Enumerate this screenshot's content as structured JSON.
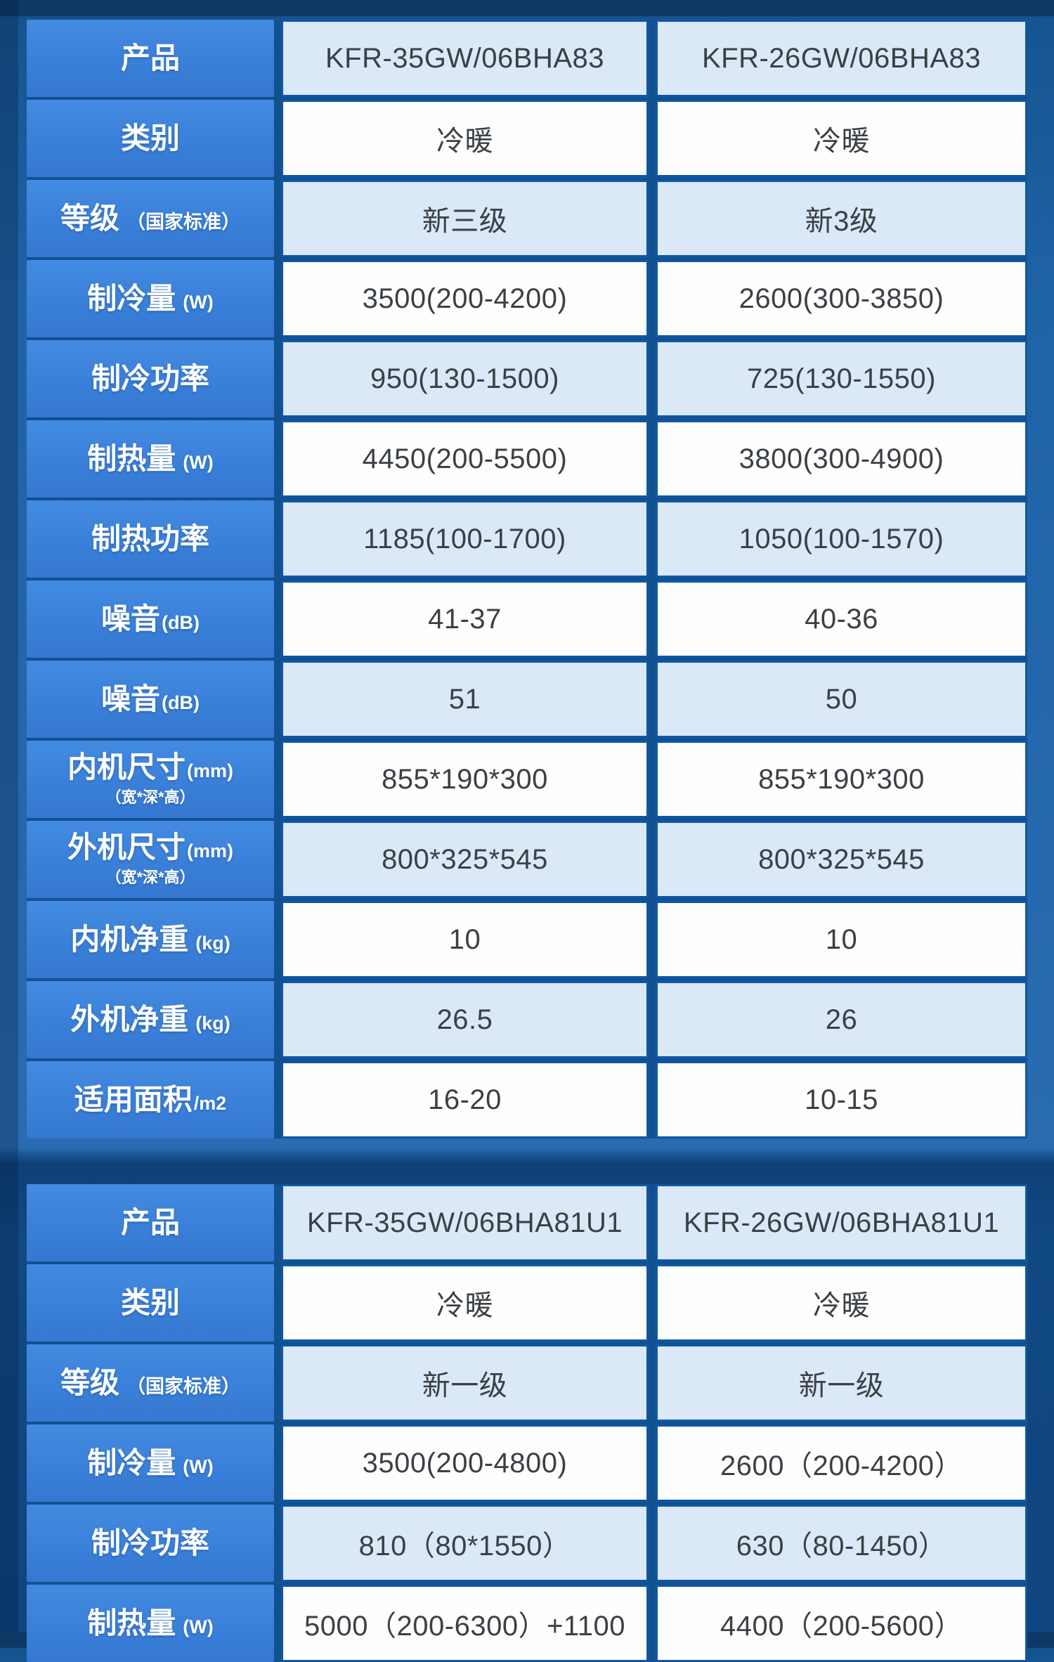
{
  "page": {
    "type": "air-conditioner-specification-comparison",
    "colors": {
      "background_top_strip": "#0e3966",
      "background_main": "#1f63a7",
      "section_divider_band": "#0d4076",
      "label_cell_blue": "#3c84da",
      "grid_line_blue": "#0f57a7",
      "row_light_blue": "#dbe8f8",
      "row_white": "#fefefe",
      "label_text": "#ffffff",
      "value_text": "#3b4045"
    }
  },
  "tables": [
    {
      "name": "table-1",
      "rows": [
        {
          "label": "产品",
          "note": "",
          "note_gap": true,
          "sub": "",
          "v1": "KFR-35GW/06BHA83",
          "v2": "KFR-26GW/06BHA83"
        },
        {
          "label": "类别",
          "note": "",
          "note_gap": true,
          "sub": "",
          "v1": "冷暖",
          "v2": "冷暖"
        },
        {
          "label": "等级",
          "note": "（国家标准）",
          "note_gap": true,
          "sub": "",
          "v1": "新三级",
          "v2": "新3级"
        },
        {
          "label": "制冷量",
          "note": "(W)",
          "note_gap": true,
          "sub": "",
          "v1": "3500(200-4200)",
          "v2": "2600(300-3850)"
        },
        {
          "label": "制冷功率",
          "note": "",
          "note_gap": true,
          "sub": "",
          "v1": "950(130-1500)",
          "v2": "725(130-1550)"
        },
        {
          "label": "制热量",
          "note": "(W)",
          "note_gap": true,
          "sub": "",
          "v1": "4450(200-5500)",
          "v2": "3800(300-4900)"
        },
        {
          "label": "制热功率",
          "note": "",
          "note_gap": true,
          "sub": "",
          "v1": "1185(100-1700)",
          "v2": "1050(100-1570)"
        },
        {
          "label": "噪音",
          "note": "(dB)",
          "note_gap": false,
          "sub": "",
          "v1": "41-37",
          "v2": "40-36"
        },
        {
          "label": "噪音",
          "note": "(dB)",
          "note_gap": false,
          "sub": "",
          "v1": "51",
          "v2": "50"
        },
        {
          "label": "内机尺寸",
          "note": "(mm)",
          "note_gap": false,
          "sub": "（宽*深*高）",
          "v1": "855*190*300",
          "v2": "855*190*300"
        },
        {
          "label": "外机尺寸",
          "note": "(mm)",
          "note_gap": false,
          "sub": "（宽*深*高）",
          "v1": "800*325*545",
          "v2": "800*325*545"
        },
        {
          "label": "内机净重",
          "note": "(kg)",
          "note_gap": true,
          "sub": "",
          "v1": "10",
          "v2": "10"
        },
        {
          "label": "外机净重",
          "note": "(kg)",
          "note_gap": true,
          "sub": "",
          "v1": "26.5",
          "v2": "26"
        },
        {
          "label": "适用面积",
          "note": "/m2",
          "note_gap": false,
          "sub": "",
          "v1": "16-20",
          "v2": "10-15"
        }
      ]
    },
    {
      "name": "table-2",
      "rows": [
        {
          "label": "产品",
          "note": "",
          "note_gap": true,
          "sub": "",
          "v1": "KFR-35GW/06BHA81U1",
          "v2": "KFR-26GW/06BHA81U1"
        },
        {
          "label": "类别",
          "note": "",
          "note_gap": true,
          "sub": "",
          "v1": "冷暖",
          "v2": "冷暖"
        },
        {
          "label": "等级",
          "note": "（国家标准）",
          "note_gap": true,
          "sub": "",
          "v1": "新一级",
          "v2": "新一级"
        },
        {
          "label": "制冷量",
          "note": "(W)",
          "note_gap": true,
          "sub": "",
          "v1": "3500(200-4800)",
          "v2": "2600（200-4200）"
        },
        {
          "label": "制冷功率",
          "note": "",
          "note_gap": true,
          "sub": "",
          "v1": "810（80*1550）",
          "v2": "630（80-1450）"
        },
        {
          "label": "制热量",
          "note": "(W)",
          "note_gap": true,
          "sub": "",
          "v1": "5000（200-6300）+1100",
          "v2": "4400（200-5600）"
        }
      ]
    }
  ]
}
